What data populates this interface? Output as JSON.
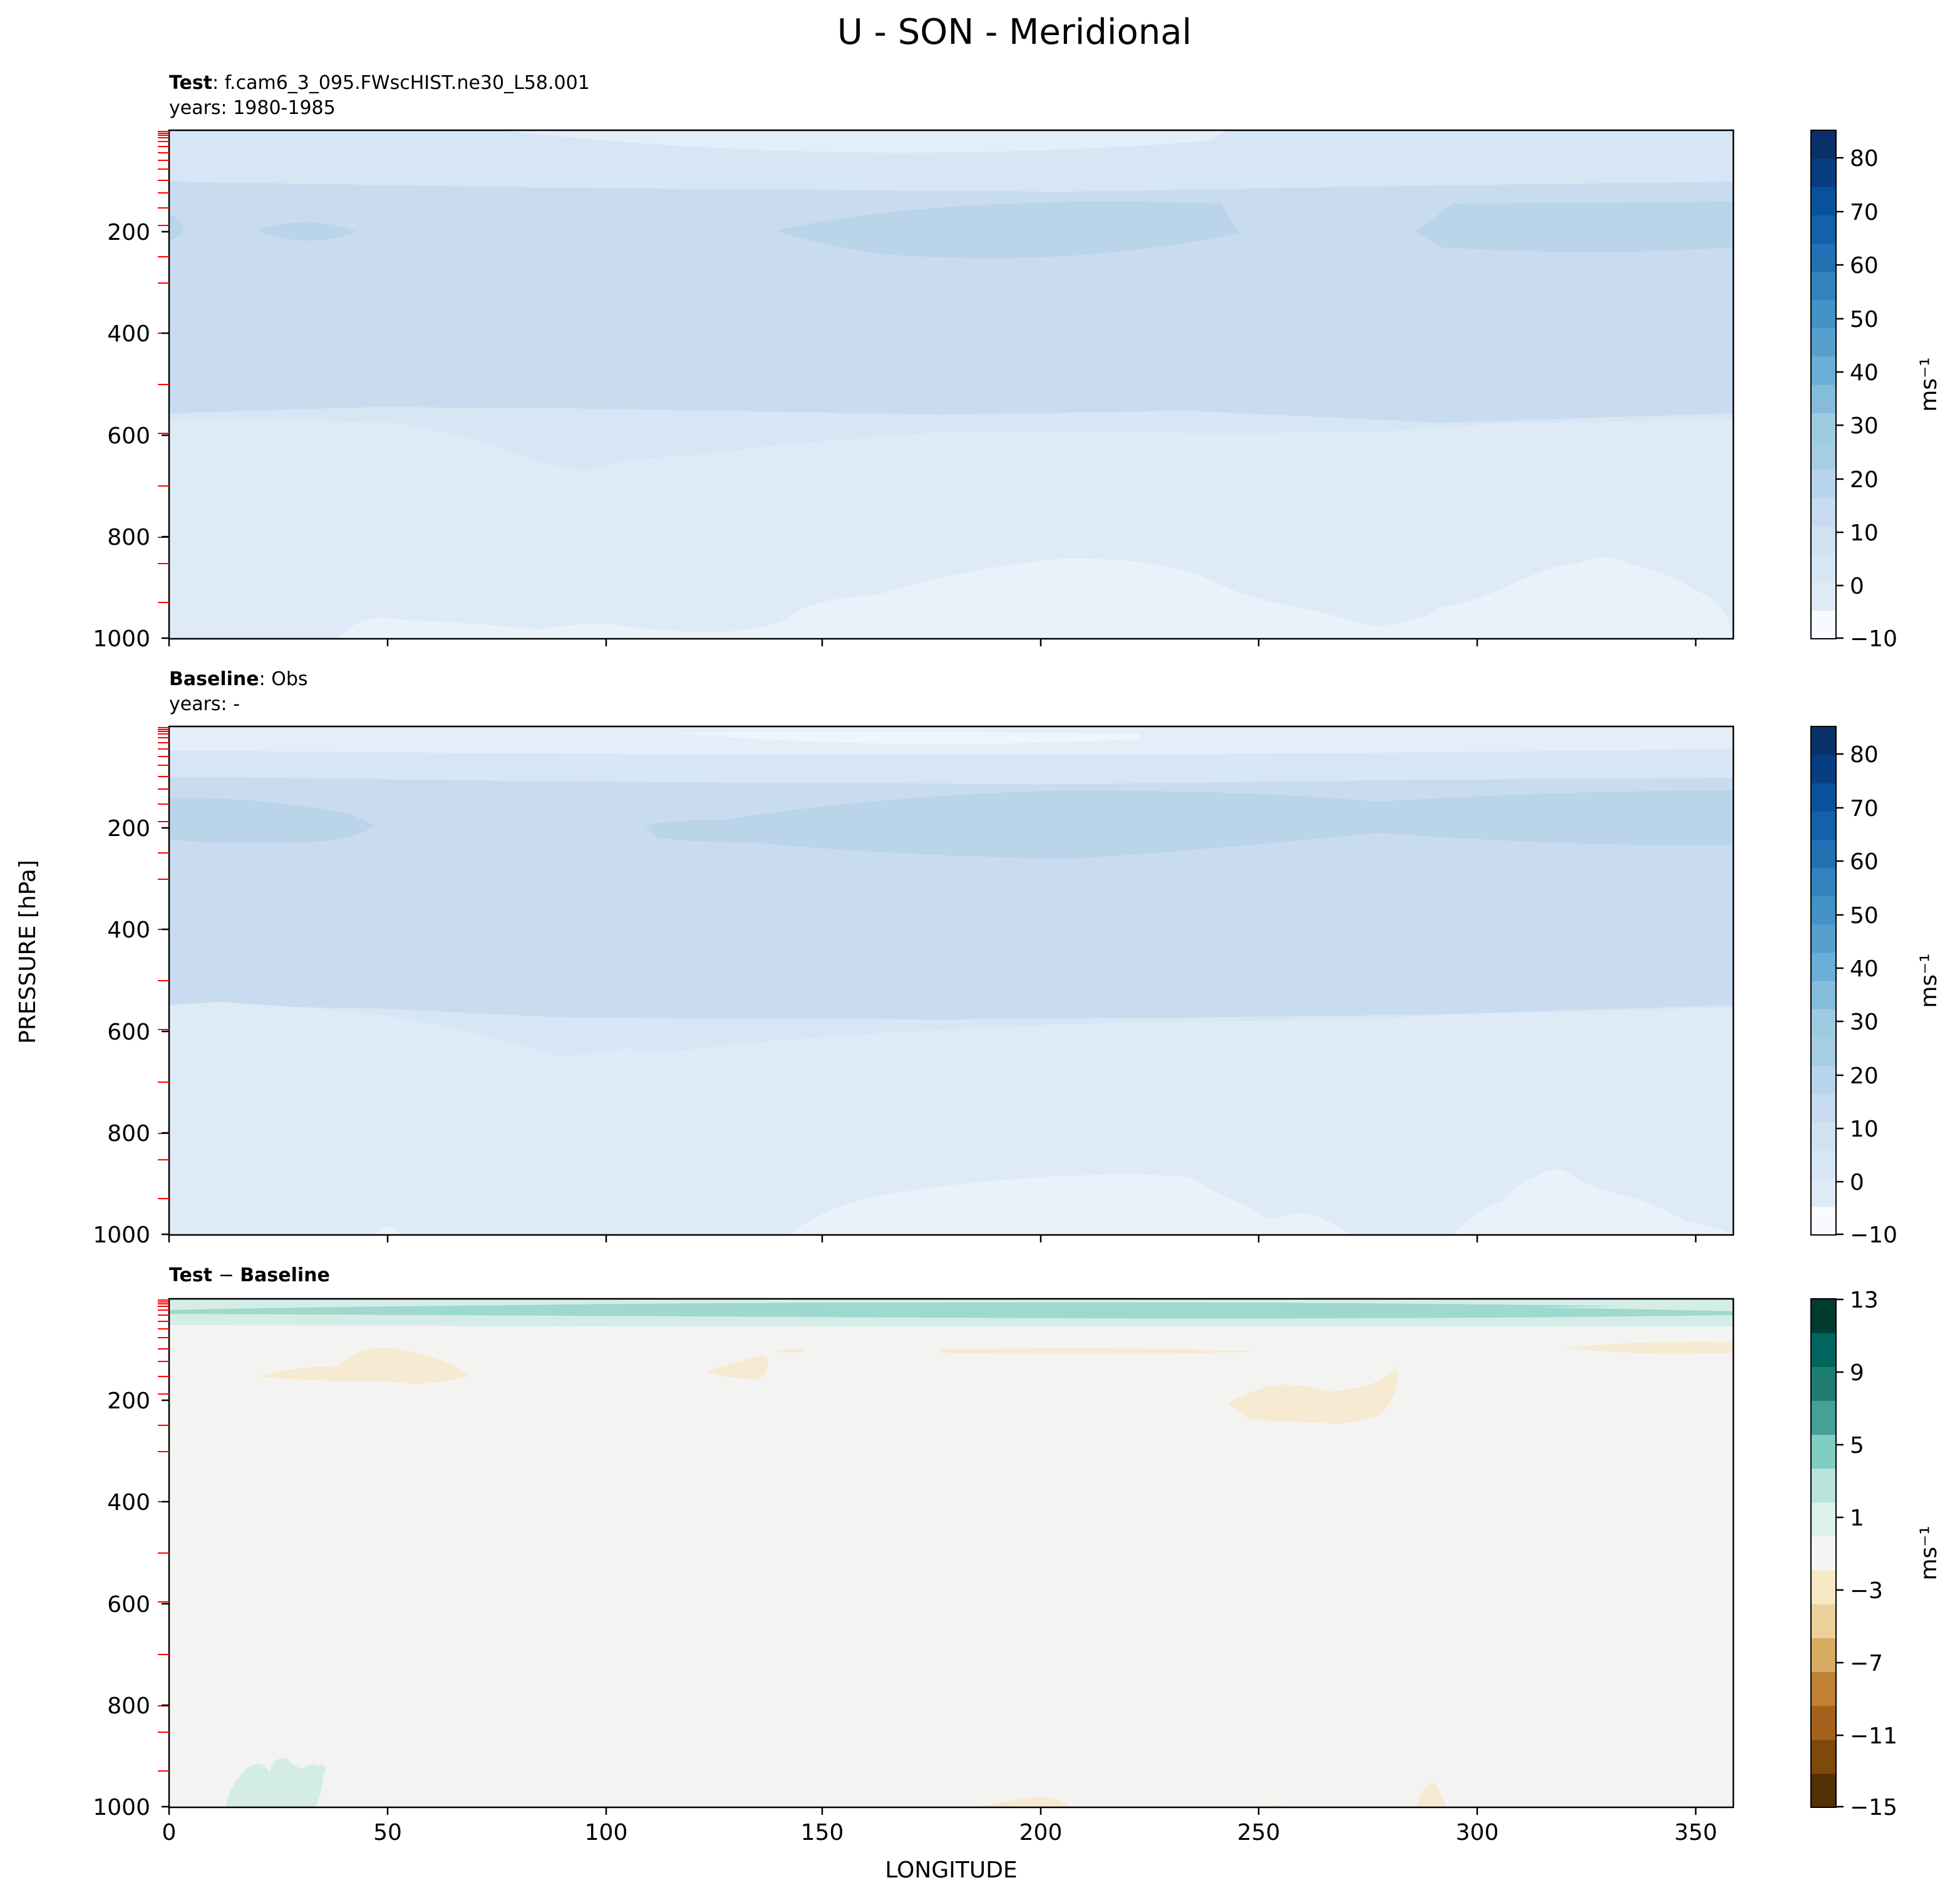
{
  "figure": {
    "title": "U - SON - Meridional",
    "ylabel": "PRESSURE [hPa]",
    "xlabel": "LONGITUDE"
  },
  "panels": [
    {
      "label_bold": "Test",
      "label_rest": ": f.cam6_3_095.FWscHIST.ne30_L58.001",
      "years": "years: 1980-1985"
    },
    {
      "label_bold": "Baseline",
      "label_rest": ": Obs",
      "years": "years: -"
    },
    {
      "label_bold": "Test",
      "label_op": " − ",
      "label_bold2": "Baseline",
      "years": ""
    }
  ],
  "colorbars": [
    {
      "unit": "ms⁻¹",
      "ticks": [
        "80",
        "70",
        "60",
        "50",
        "40",
        "30",
        "20",
        "10",
        "0",
        "−10"
      ],
      "colors": [
        "#f7fbff",
        "#deebf7",
        "#d7e6f4",
        "#cfe1f2",
        "#c6dbef",
        "#b7d4ea",
        "#a6cee3",
        "#9ecae1",
        "#85bcdc",
        "#6baed6",
        "#57a0ce",
        "#4292c6",
        "#3282be",
        "#2171b5",
        "#1361a9",
        "#08519c",
        "#083e81",
        "#08306b"
      ]
    },
    {
      "unit": "ms⁻¹",
      "ticks": [
        "80",
        "70",
        "60",
        "50",
        "40",
        "30",
        "20",
        "10",
        "0",
        "−10"
      ],
      "colors": [
        "#f7fbff",
        "#deebf7",
        "#d7e6f4",
        "#cfe1f2",
        "#c6dbef",
        "#b7d4ea",
        "#a6cee3",
        "#9ecae1",
        "#85bcdc",
        "#6baed6",
        "#57a0ce",
        "#4292c6",
        "#3282be",
        "#2171b5",
        "#1361a9",
        "#08519c",
        "#083e81",
        "#08306b"
      ]
    },
    {
      "unit": "ms⁻¹",
      "ticks": [
        "13",
        "9",
        "5",
        "1",
        "−3",
        "−7",
        "−11",
        "−15"
      ],
      "colors": [
        "#543005",
        "#7e4a0c",
        "#a6611a",
        "#c08232",
        "#d7ab62",
        "#ebd09b",
        "#f6e8c3",
        "#f5f5f5",
        "#ddf1ed",
        "#b8e4db",
        "#80cdc1",
        "#45a096",
        "#1f7c72",
        "#01665e",
        "#003c30"
      ]
    }
  ],
  "chart_data": [
    {
      "type": "heatmap",
      "title": "Test: f.cam6_3_095.FWscHIST.ne30_L58.001",
      "subtitle": "years: 1980-1985",
      "xlabel": "LONGITUDE",
      "ylabel": "PRESSURE [hPa]",
      "xlim": [
        0,
        358
      ],
      "ylim": [
        1000,
        0
      ],
      "x_ticks": [
        "0",
        "50",
        "100",
        "150",
        "200",
        "250",
        "300",
        "350"
      ],
      "y_ticks": [
        "200",
        "400",
        "600",
        "800",
        "1000"
      ],
      "colorbar_label": "ms⁻¹",
      "levels": [
        -10,
        -5,
        0,
        5,
        10,
        15,
        20,
        25,
        30,
        35,
        40,
        45,
        50,
        55,
        60,
        65,
        70,
        75,
        80,
        85
      ],
      "approx_values": {
        "near_200hPa_jets": "15-20",
        "mid_troposphere": "10-15",
        "lower_troposphere": "5-10",
        "near_surface": "0-5"
      },
      "top_pressure_tick_count": 25
    },
    {
      "type": "heatmap",
      "title": "Baseline: Obs",
      "subtitle": "years: -",
      "xlabel": "LONGITUDE",
      "ylabel": "PRESSURE [hPa]",
      "xlim": [
        0,
        358
      ],
      "ylim": [
        1000,
        0
      ],
      "x_ticks": [
        "0",
        "50",
        "100",
        "150",
        "200",
        "250",
        "300",
        "350"
      ],
      "y_ticks": [
        "200",
        "400",
        "600",
        "800",
        "1000"
      ],
      "colorbar_label": "ms⁻¹",
      "levels": [
        -10,
        -5,
        0,
        5,
        10,
        15,
        20,
        25,
        30,
        35,
        40,
        45,
        50,
        55,
        60,
        65,
        70,
        75,
        80,
        85
      ],
      "approx_values": {
        "near_200hPa_jets": "15-20",
        "mid_troposphere": "10-15",
        "lower_troposphere": "5-10",
        "near_surface": "0-5"
      },
      "top_pressure_tick_count": 25
    },
    {
      "type": "heatmap",
      "title": "Test − Baseline",
      "xlabel": "LONGITUDE",
      "ylabel": "PRESSURE [hPa]",
      "xlim": [
        0,
        358
      ],
      "ylim": [
        1000,
        0
      ],
      "x_ticks": [
        "0",
        "50",
        "100",
        "150",
        "200",
        "250",
        "300",
        "350"
      ],
      "y_ticks": [
        "200",
        "400",
        "600",
        "800",
        "1000"
      ],
      "colorbar_label": "ms⁻¹",
      "levels": [
        -15,
        -13,
        -11,
        -9,
        -7,
        -5,
        -3,
        -1,
        1,
        3,
        5,
        7,
        9,
        11,
        13
      ],
      "approx_values": {
        "upper_level_band": "1-5",
        "most_of_domain": "-1 to 1",
        "small_negative_patches": "-3 to -1"
      },
      "top_pressure_tick_count": 25
    }
  ]
}
